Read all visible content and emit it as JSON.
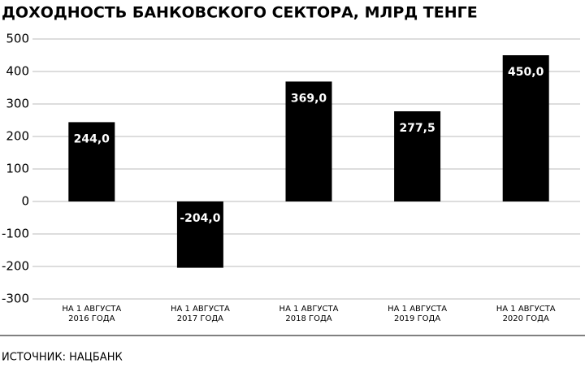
{
  "chart_data": {
    "type": "bar",
    "title": "ДОХОДНОСТЬ БАНКОВСКОГО СЕКТОРА, МЛРД ТЕНГЕ",
    "categories": [
      "НА 1 АВГУСТА\n2016 ГОДА",
      "НА 1 АВГУСТА\n2017 ГОДА",
      "НА 1 АВГУСТА\n2018 ГОДА",
      "НА 1 АВГУСТА\n2019 ГОДА",
      "НА 1 АВГУСТА\n2020 ГОДА"
    ],
    "values": [
      244,
      -204,
      369,
      277.5,
      450
    ],
    "value_labels": [
      "244,0",
      "-204,0",
      "369,0",
      "277,5",
      "450,0"
    ],
    "color": "#000000",
    "ylim": [
      -300,
      500
    ],
    "yticks": [
      500,
      400,
      300,
      200,
      100,
      0,
      -100,
      -200,
      -300
    ],
    "grid": true,
    "source": "ИСТОЧНИК: НАЦБАНК"
  }
}
